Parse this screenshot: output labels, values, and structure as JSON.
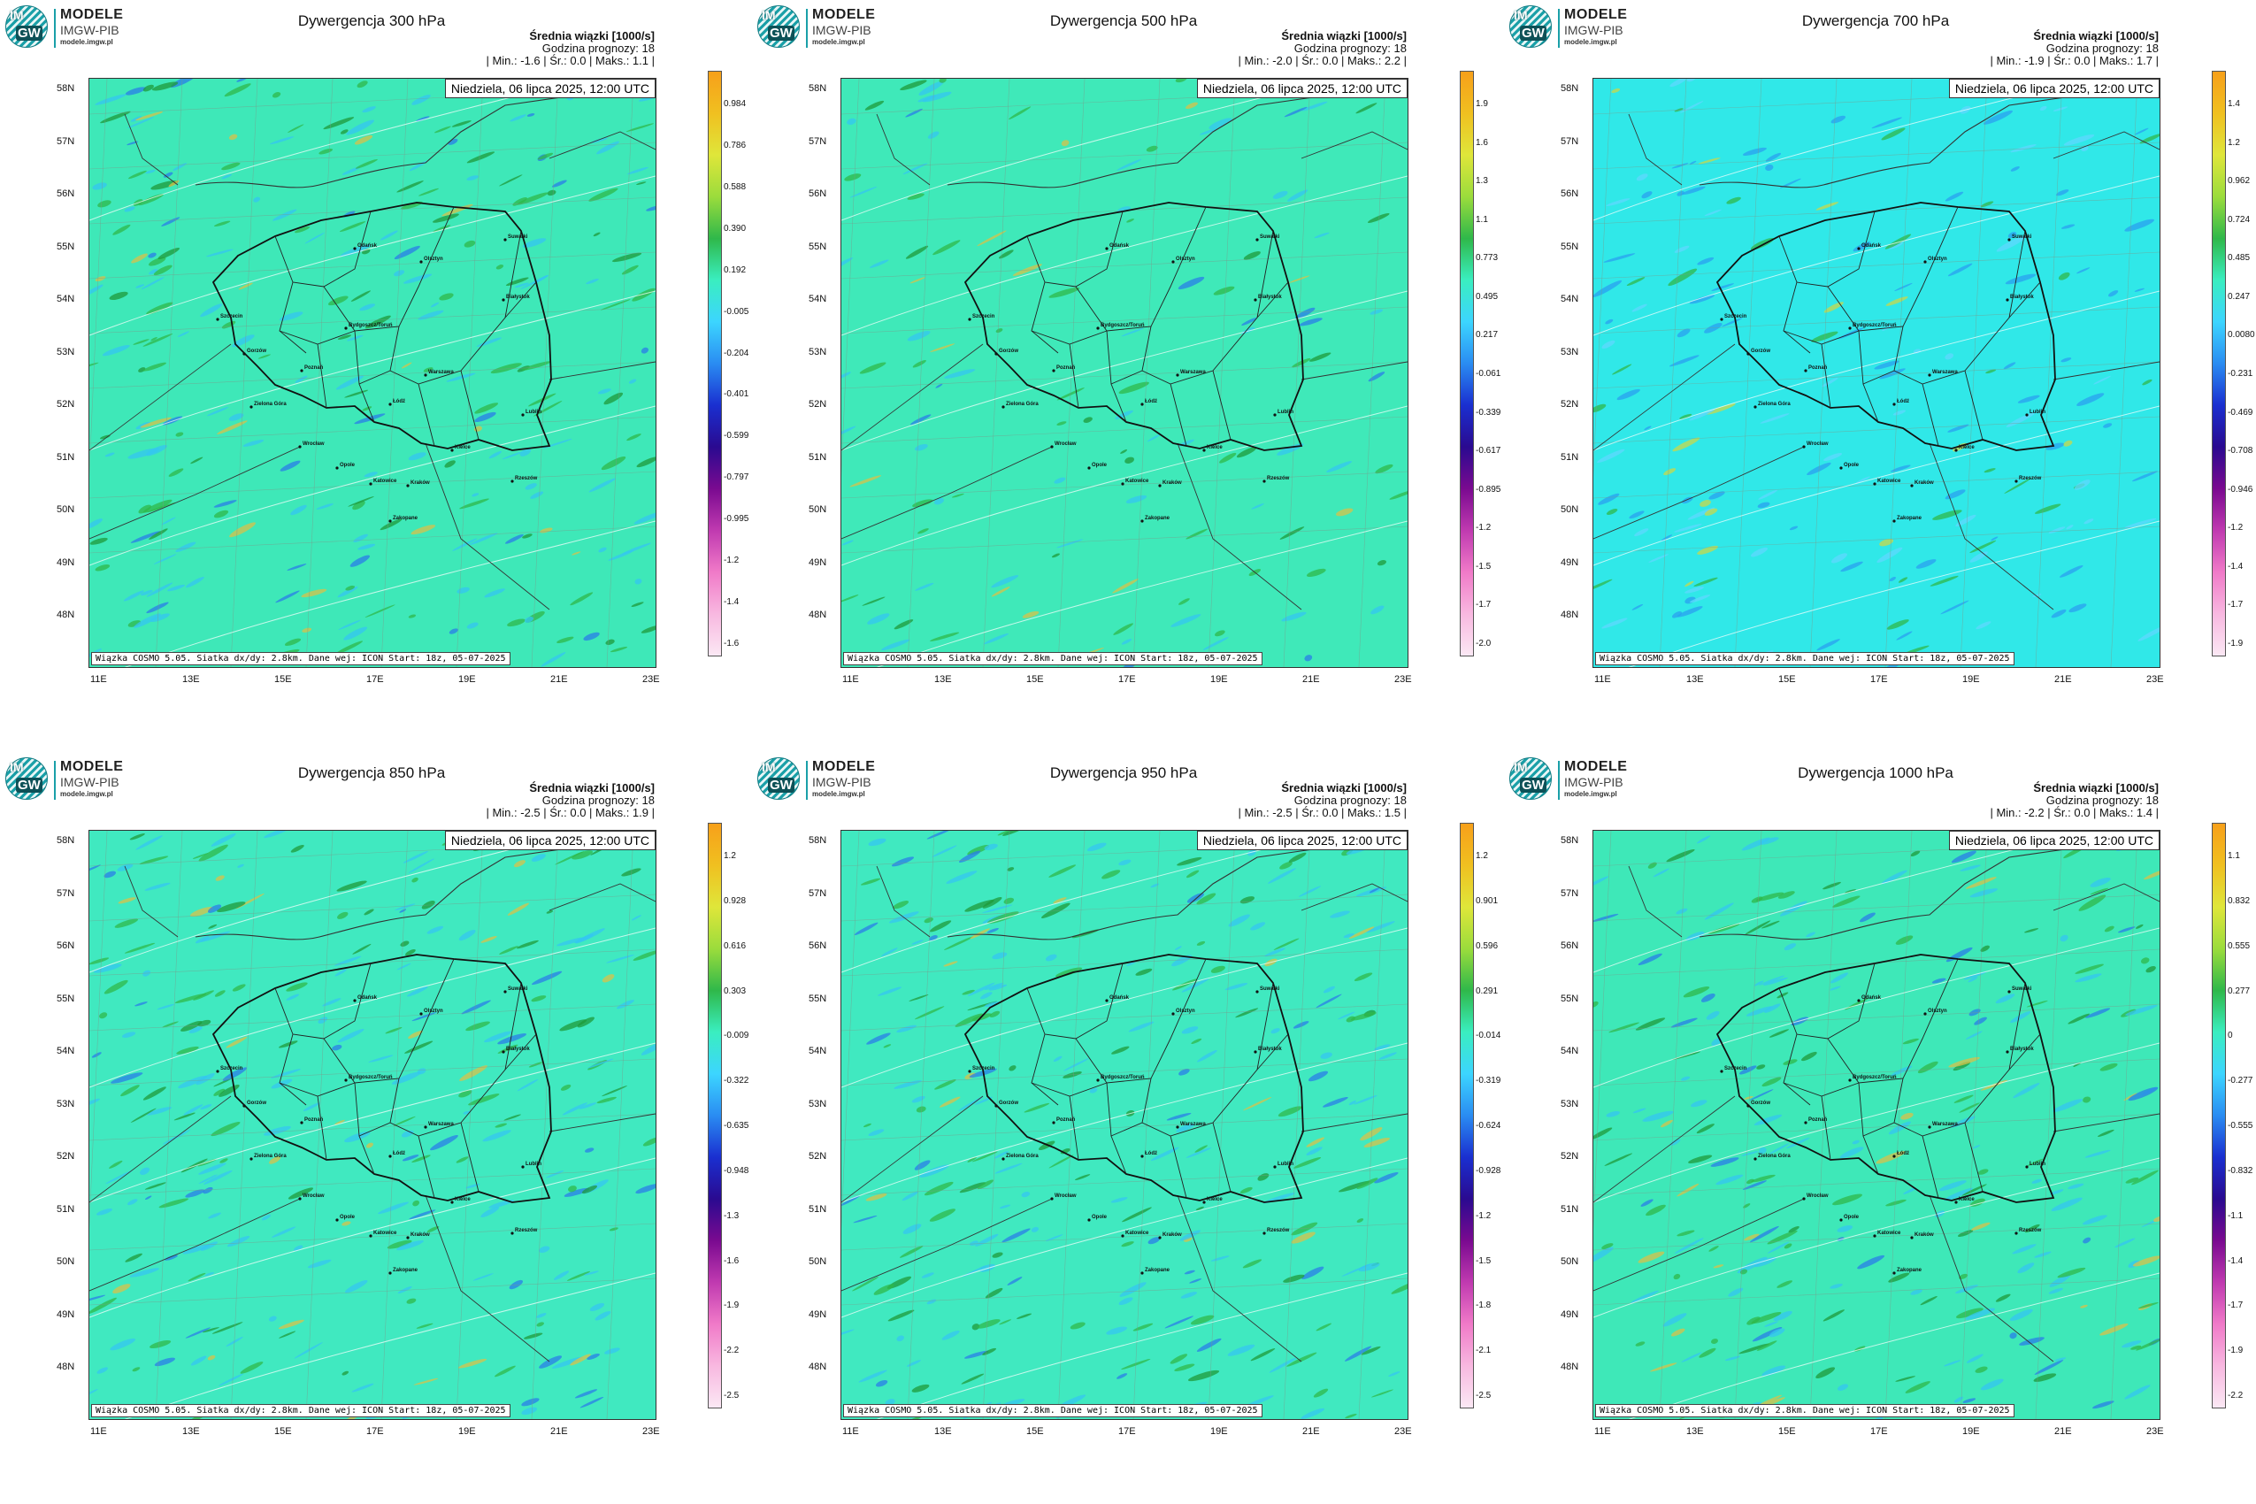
{
  "logo": {
    "line1": "MODELE",
    "line2": "IMGW-PIB",
    "line3": "modele.imgw.pl",
    "badge_top": "IM",
    "badge_bottom": "GW"
  },
  "common": {
    "mean_label": "Średnia wiązki [1000/s]",
    "forecast_hour": "Godzina prognozy: 18",
    "date": "Niedziela, 06 lipca 2025, 12:00 UTC",
    "footer": "Wiązka COSMO 5.05. Siatka dx/dy: 2.8km. Dane wej: ICON Start: 18z, 05-07-2025",
    "min_label": "Min.:",
    "mean_short": "Śr.:",
    "max_label": "Maks.:",
    "lat_labels": [
      "58N",
      "57N",
      "56N",
      "55N",
      "54N",
      "53N",
      "52N",
      "51N",
      "50N",
      "49N",
      "48N"
    ],
    "lon_labels": [
      "11E",
      "13E",
      "15E",
      "17E",
      "19E",
      "21E",
      "23E"
    ],
    "cities": [
      "Gdańsk",
      "Suwałki",
      "Olsztyn",
      "Białystok",
      "Szczecin",
      "Bydgoszcz/Toruń",
      "Gorzów",
      "Poznań",
      "Warszawa",
      "Łódź",
      "Zielona Góra",
      "Lublin",
      "Wrocław",
      "Kielce",
      "Opole",
      "Rzeszów",
      "Katowice",
      "Kraków",
      "Zakopane"
    ]
  },
  "panels": [
    {
      "title": "Dywergencja 300 hPa",
      "min": "-1.6",
      "mean": "0.0",
      "max": "1.1",
      "field": "wet",
      "scale": [
        "0.984",
        "0.786",
        "0.588",
        "0.390",
        "0.192",
        "-0.005",
        "-0.204",
        "-0.401",
        "-0.599",
        "-0.797",
        "-0.995",
        "-1.2",
        "-1.4",
        "-1.6"
      ]
    },
    {
      "title": "Dywergencja 500 hPa",
      "min": "-2.0",
      "mean": "0.0",
      "max": "2.2",
      "field": "calm",
      "scale": [
        "1.9",
        "1.6",
        "1.3",
        "1.1",
        "0.773",
        "0.495",
        "0.217",
        "-0.061",
        "-0.339",
        "-0.617",
        "-0.895",
        "-1.2",
        "-1.5",
        "-1.7",
        "-2.0"
      ]
    },
    {
      "title": "Dywergencja 700 hPa",
      "min": "-1.9",
      "mean": "0.0",
      "max": "1.7",
      "field": "cyan",
      "scale": [
        "1.4",
        "1.2",
        "0.962",
        "0.724",
        "0.485",
        "0.247",
        "0.0080",
        "-0.231",
        "-0.469",
        "-0.708",
        "-0.946",
        "-1.2",
        "-1.4",
        "-1.7",
        "-1.9"
      ]
    },
    {
      "title": "Dywergencja 850 hPa",
      "min": "-2.5",
      "mean": "0.0",
      "max": "1.9",
      "field": "busy",
      "scale": [
        "1.2",
        "0.928",
        "0.616",
        "0.303",
        "-0.009",
        "-0.322",
        "-0.635",
        "-0.948",
        "-1.3",
        "-1.6",
        "-1.9",
        "-2.2",
        "-2.5"
      ]
    },
    {
      "title": "Dywergencja 950 hPa",
      "min": "-2.5",
      "mean": "0.0",
      "max": "1.5",
      "field": "busy",
      "scale": [
        "1.2",
        "0.901",
        "0.596",
        "0.291",
        "-0.014",
        "-0.319",
        "-0.624",
        "-0.928",
        "-1.2",
        "-1.5",
        "-1.8",
        "-2.1",
        "-2.5"
      ]
    },
    {
      "title": "Dywergencja 1000 hPa",
      "min": "-2.2",
      "mean": "0.0",
      "max": "1.4",
      "field": "wet",
      "scale": [
        "1.1",
        "0.832",
        "0.555",
        "0.277",
        "0",
        "-0.277",
        "-0.555",
        "-0.832",
        "-1.1",
        "-1.4",
        "-1.7",
        "-1.9",
        "-2.2"
      ]
    }
  ]
}
